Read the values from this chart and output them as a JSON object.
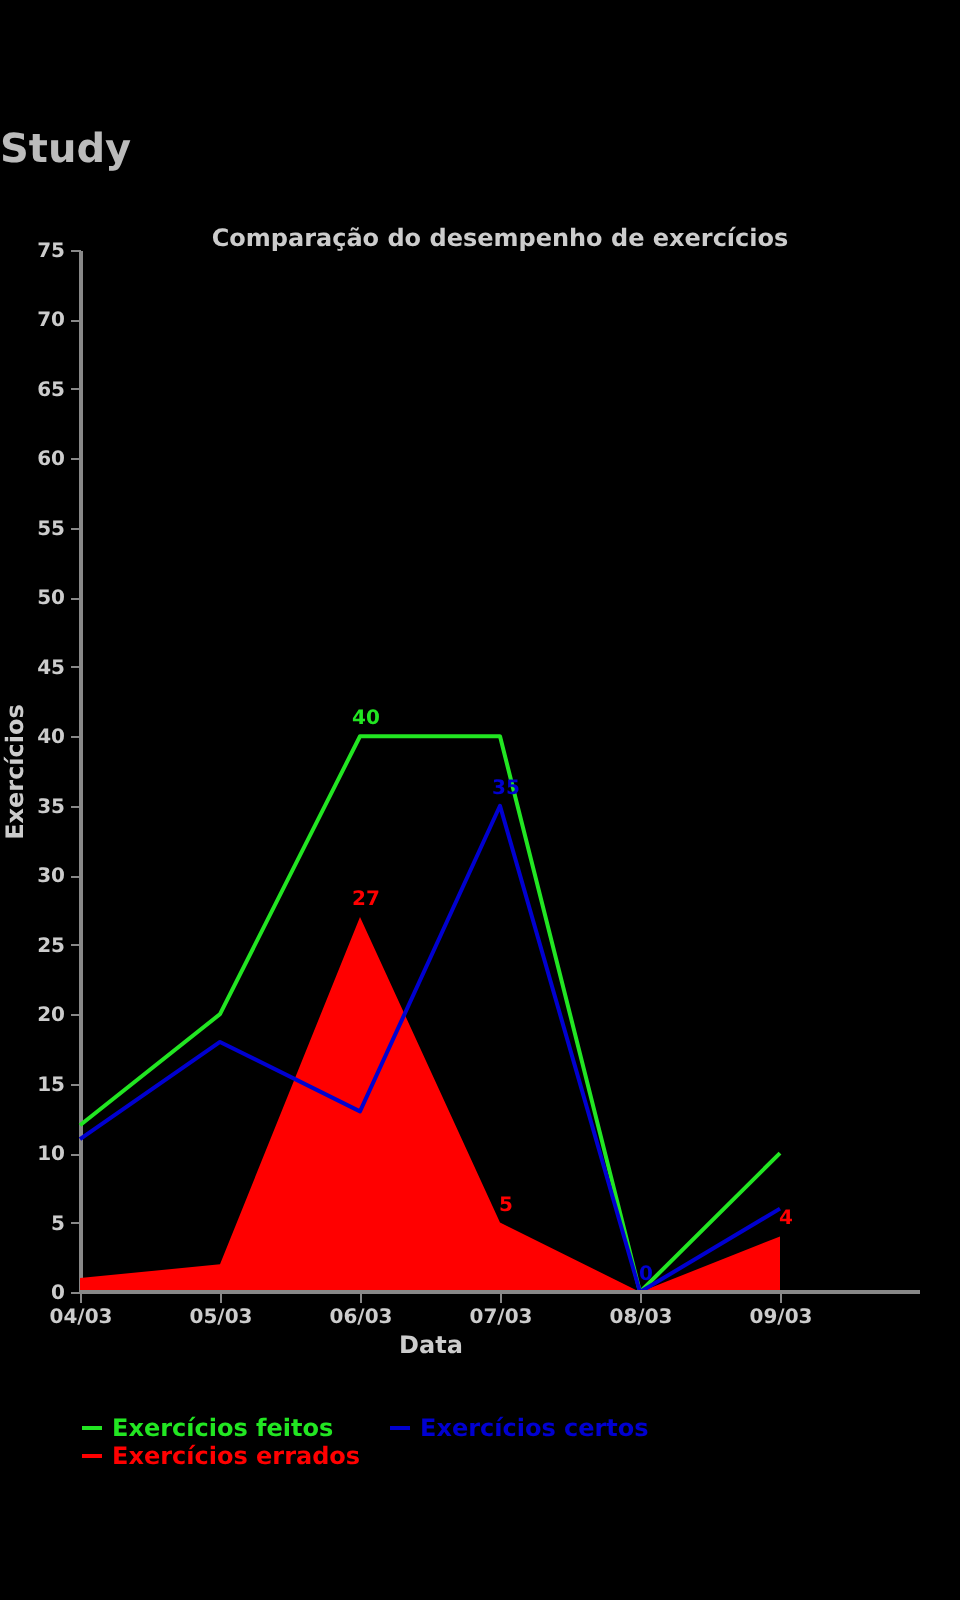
{
  "chart_data": {
    "type": "line",
    "title": "Comparação do desempenho de exercícios",
    "annotations": [
      "Study"
    ],
    "xlabel": "Data",
    "ylabel": "Exercícios",
    "categories": [
      "04/03",
      "05/03",
      "06/03",
      "07/03",
      "08/03",
      "09/03"
    ],
    "series": [
      {
        "name": "Exercícios feitos",
        "color": "#22e622",
        "values": [
          12,
          20,
          40,
          40,
          0,
          10
        ],
        "value_labels": [
          null,
          null,
          "40",
          null,
          null,
          null
        ]
      },
      {
        "name": "Exercícios certos",
        "color": "#0000d0",
        "values": [
          11,
          18,
          13,
          35,
          0,
          6
        ],
        "value_labels": [
          null,
          null,
          null,
          "35",
          "0",
          null
        ]
      },
      {
        "name": "Exercícios errados",
        "color": "#ff0000",
        "type": "area",
        "values": [
          1,
          2,
          27,
          5,
          0,
          4
        ],
        "value_labels": [
          null,
          null,
          "27",
          "5",
          null,
          "4"
        ]
      }
    ],
    "ylim": [
      0,
      75
    ],
    "yticks": [
      0,
      5,
      10,
      15,
      20,
      25,
      30,
      35,
      40,
      45,
      50,
      55,
      60,
      65,
      70,
      75
    ],
    "grid": false,
    "legend": "bottom",
    "marker": "none",
    "line_style": "solid"
  }
}
